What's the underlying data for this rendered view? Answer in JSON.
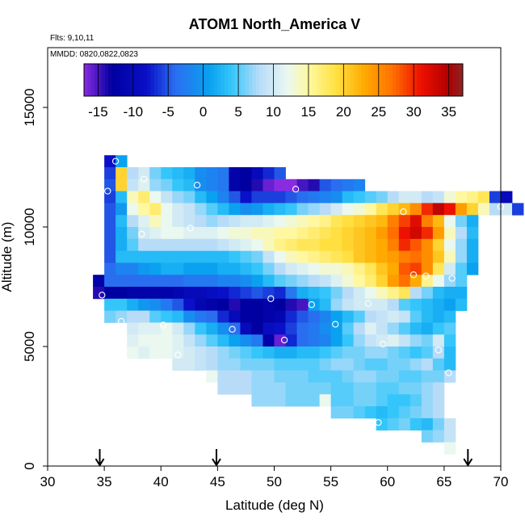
{
  "chart_data": {
    "type": "heatmap",
    "title": "ATOM1 North_America V",
    "flights_label": "Flts: 9,10,11",
    "dates_label": "MMDD: 0820,0822,0823",
    "xlabel": "Latitude (deg N)",
    "ylabel": "Altitude (m)",
    "xlim": [
      30,
      70
    ],
    "ylim": [
      0,
      17500
    ],
    "xticks": [
      30,
      35,
      40,
      45,
      50,
      55,
      60,
      65,
      70
    ],
    "yticks": [
      0,
      5000,
      10000,
      15000
    ],
    "colorbar": {
      "range": [
        -17,
        37
      ],
      "ticks": [
        -15,
        -10,
        -5,
        0,
        5,
        10,
        15,
        20,
        25,
        30,
        35
      ],
      "stops": [
        {
          "v": -17,
          "c": "#8a2be2"
        },
        {
          "v": -13,
          "c": "#0000a0"
        },
        {
          "v": -8,
          "c": "#0a10c8"
        },
        {
          "v": -4,
          "c": "#2a6ef0"
        },
        {
          "v": 1,
          "c": "#0aa2f0"
        },
        {
          "v": 4,
          "c": "#34c6fa"
        },
        {
          "v": 8,
          "c": "#b8dcf8"
        },
        {
          "v": 12,
          "c": "#eaf8f0"
        },
        {
          "v": 15,
          "c": "#fff8a0"
        },
        {
          "v": 19,
          "c": "#ffe040"
        },
        {
          "v": 23,
          "c": "#ffaa00"
        },
        {
          "v": 27,
          "c": "#ff7000"
        },
        {
          "v": 31,
          "c": "#ee1000"
        },
        {
          "v": 35,
          "c": "#b00000"
        },
        {
          "v": 37,
          "c": "#8c2424"
        }
      ]
    },
    "cells": {
      "lat_step": 1,
      "alt_step": 500,
      "rows": [
        {
          "alt": 12500,
          "lat0": 35,
          "values": [
            -8,
            1
          ]
        },
        {
          "alt": 12000,
          "lat0": 35,
          "values": [
            -6,
            20,
            8,
            10,
            6,
            4,
            3,
            2,
            -1,
            -2,
            -3,
            -12,
            -13,
            -10,
            -7,
            -5
          ]
        },
        {
          "alt": 11500,
          "lat0": 35,
          "values": [
            -5,
            20,
            9,
            11,
            7,
            6,
            4,
            3,
            -1,
            -2,
            -3,
            -12,
            -13,
            -14,
            -16,
            -17,
            -17,
            -15,
            -14,
            -5,
            -4,
            -3,
            -2
          ]
        },
        {
          "alt": 11000,
          "lat0": 35,
          "values": [
            -6,
            3,
            14,
            17,
            12,
            9,
            7,
            6,
            3,
            1,
            -2,
            -5,
            -8,
            -6,
            -6,
            -6,
            -5,
            -4,
            -3,
            -2,
            -1,
            3,
            4,
            5,
            6,
            8,
            10,
            10,
            8,
            9,
            13,
            15,
            16,
            18,
            -6,
            -10
          ]
        },
        {
          "alt": 10500,
          "lat0": 35,
          "values": [
            -5,
            0,
            12,
            15,
            17,
            12,
            10,
            9,
            7,
            5,
            3,
            1,
            -1,
            0,
            2,
            3,
            4,
            6,
            7,
            8,
            10,
            12,
            13,
            15,
            18,
            20,
            22,
            25,
            30,
            34,
            31,
            24,
            20,
            14,
            8,
            10,
            -6
          ]
        },
        {
          "alt": 10000,
          "lat0": 35,
          "values": [
            -5,
            3,
            8,
            11,
            14,
            12,
            10,
            9,
            8,
            7,
            8,
            9,
            10,
            10,
            11,
            12,
            13,
            14,
            15,
            16,
            18,
            19,
            20,
            21,
            22,
            26,
            29,
            32,
            26,
            22,
            12,
            6,
            2
          ]
        },
        {
          "alt": 9500,
          "lat0": 35,
          "values": [
            -5,
            2,
            6,
            10,
            11,
            12,
            12,
            11,
            11,
            11,
            12,
            13,
            13,
            14,
            14,
            15,
            15,
            16,
            17,
            18,
            19,
            20,
            21,
            22,
            24,
            27,
            31,
            33,
            30,
            24,
            14,
            8,
            3
          ]
        },
        {
          "alt": 9000,
          "lat0": 35,
          "values": [
            -5,
            2,
            5,
            8,
            8,
            8,
            8,
            8,
            8,
            8,
            9,
            10,
            11,
            12,
            14,
            16,
            17,
            18,
            18,
            19,
            19,
            20,
            21,
            22,
            23,
            26,
            30,
            28,
            25,
            20,
            12,
            7,
            2
          ]
        },
        {
          "alt": 8500,
          "lat0": 35,
          "values": [
            -5,
            3,
            3,
            3,
            3,
            3,
            3,
            3,
            3,
            3,
            3,
            4,
            5,
            6,
            9,
            12,
            14,
            15,
            16,
            17,
            18,
            19,
            21,
            22,
            23,
            24,
            26,
            27,
            25,
            21,
            14,
            7,
            2
          ]
        },
        {
          "alt": 8000,
          "lat0": 35,
          "values": [
            -4,
            -2,
            -2,
            0,
            1,
            2,
            2,
            1,
            1,
            1,
            2,
            2,
            3,
            4,
            6,
            8,
            10,
            11,
            12,
            13,
            13,
            14,
            16,
            18,
            21,
            23,
            28,
            29,
            25,
            18,
            10,
            5,
            1
          ]
        },
        {
          "alt": 7500,
          "lat0": 34,
          "values": [
            -12,
            -4,
            -4,
            -4,
            -4,
            -4,
            -4,
            -4,
            -3,
            -3,
            -3,
            -2,
            -2,
            -1,
            1,
            3,
            5,
            6,
            7,
            8,
            9,
            11,
            13,
            15,
            17,
            20,
            24,
            27,
            23,
            16,
            12,
            7,
            5
          ]
        },
        {
          "alt": 7000,
          "lat0": 34,
          "values": [
            -14,
            -13,
            -13,
            -12,
            -12,
            -12,
            -12,
            -11,
            -10,
            -10,
            -9,
            -8,
            -7,
            -6,
            -5,
            -6,
            -7,
            -3,
            2,
            3,
            4,
            6,
            8,
            10,
            12,
            14,
            16,
            18,
            8,
            6,
            3,
            2,
            2
          ]
        },
        {
          "alt": 6500,
          "lat0": 35,
          "values": [
            4,
            4,
            2,
            0,
            -1,
            -3,
            -5,
            -8,
            -11,
            -12,
            -13,
            -14,
            -13,
            -13,
            -12,
            -13,
            -14,
            -15,
            1,
            3,
            7,
            9,
            10,
            10,
            10,
            8,
            5,
            4,
            3,
            2,
            1,
            3
          ]
        },
        {
          "alt": 6000,
          "lat0": 35,
          "values": [
            6,
            7,
            8,
            8,
            5,
            4,
            3,
            -1,
            -3,
            -4,
            -7,
            -10,
            -13,
            -13,
            -12,
            -11,
            -7,
            -5,
            -4,
            -2,
            1,
            3,
            5,
            8,
            9,
            10,
            9,
            5,
            3,
            2,
            3
          ]
        },
        {
          "alt": 5500,
          "lat0": 37,
          "values": [
            10,
            11,
            11,
            12,
            10,
            7,
            4,
            2,
            -1,
            -4,
            -10,
            -13,
            -9,
            -8,
            -6,
            -4,
            -3,
            -1,
            1,
            5,
            8,
            11,
            9,
            7,
            5,
            3,
            2,
            4,
            5
          ]
        },
        {
          "alt": 5000,
          "lat0": 37,
          "values": [
            11,
            12,
            12,
            12,
            11,
            9,
            7,
            5,
            3,
            1,
            -1,
            -3,
            -12,
            -16,
            -7,
            -4,
            -3,
            -2,
            1,
            4,
            7,
            9,
            10,
            11,
            9,
            7,
            6,
            10,
            4
          ]
        },
        {
          "alt": 4500,
          "lat0": 37,
          "values": [
            12,
            11,
            12,
            12,
            11,
            10,
            9,
            8,
            7,
            6,
            5,
            4,
            3,
            2,
            2,
            3,
            3,
            4,
            5,
            6,
            6,
            7,
            7,
            6,
            5,
            4,
            5,
            8,
            3
          ]
        },
        {
          "alt": 4000,
          "lat0": 41,
          "values": [
            10,
            10,
            9,
            8,
            7,
            7,
            6,
            6,
            6,
            5,
            5,
            5,
            5,
            6,
            7,
            7,
            6,
            5,
            5,
            6,
            6,
            7,
            8,
            5,
            3
          ]
        },
        {
          "alt": 3500,
          "lat0": 44,
          "values": [
            12,
            8,
            8,
            8,
            7,
            7,
            6,
            6,
            6,
            5,
            5,
            5,
            6,
            7,
            7,
            6,
            6,
            5,
            5,
            6,
            6,
            8
          ]
        },
        {
          "alt": 3000,
          "lat0": 45,
          "values": [
            8,
            8,
            8,
            7,
            7,
            7,
            6,
            6,
            6,
            6,
            5,
            5,
            6,
            6,
            5,
            5,
            6,
            6,
            7,
            8
          ]
        },
        {
          "alt": 2500,
          "lat0": 48,
          "values": [
            7,
            7,
            7,
            6,
            6,
            6,
            12,
            5,
            5,
            6,
            6,
            5,
            4,
            4,
            5,
            7,
            8
          ]
        },
        {
          "alt": 2000,
          "lat0": 55,
          "values": [
            6,
            6,
            5,
            4,
            3,
            4,
            5,
            6,
            7,
            8
          ]
        },
        {
          "alt": 1500,
          "lat0": 59,
          "values": [
            4,
            5,
            6,
            4,
            3,
            6,
            9
          ]
        },
        {
          "alt": 1000,
          "lat0": 63,
          "values": [
            6,
            7,
            9
          ]
        },
        {
          "alt": 500,
          "lat0": 65,
          "values": [
            12
          ]
        }
      ]
    },
    "profile_markers": [
      {
        "lat": 36,
        "alt": 12750
      },
      {
        "lat": 35.3,
        "alt": 11500
      },
      {
        "lat": 38.5,
        "alt": 12000
      },
      {
        "lat": 43.2,
        "alt": 11750
      },
      {
        "lat": 51.9,
        "alt": 11580
      },
      {
        "lat": 61.4,
        "alt": 10640
      },
      {
        "lat": 70,
        "alt": 10850
      },
      {
        "lat": 34.8,
        "alt": 7150
      },
      {
        "lat": 38.3,
        "alt": 9700
      },
      {
        "lat": 42.6,
        "alt": 9950
      },
      {
        "lat": 49.7,
        "alt": 7000
      },
      {
        "lat": 53.3,
        "alt": 6750
      },
      {
        "lat": 62.3,
        "alt": 8000
      },
      {
        "lat": 63.4,
        "alt": 7950
      },
      {
        "lat": 65.7,
        "alt": 7850
      },
      {
        "lat": 36.5,
        "alt": 6050
      },
      {
        "lat": 40.2,
        "alt": 5900
      },
      {
        "lat": 46.3,
        "alt": 5720
      },
      {
        "lat": 55.4,
        "alt": 5930
      },
      {
        "lat": 50.9,
        "alt": 5270
      },
      {
        "lat": 59.6,
        "alt": 5100
      },
      {
        "lat": 64.5,
        "alt": 4850
      },
      {
        "lat": 41.5,
        "alt": 4650
      },
      {
        "lat": 65.4,
        "alt": 3900
      },
      {
        "lat": 58.3,
        "alt": 6800
      },
      {
        "lat": 59.2,
        "alt": 1820
      }
    ],
    "takeoff_arrows": [
      34.6,
      44.9,
      67.1
    ]
  }
}
